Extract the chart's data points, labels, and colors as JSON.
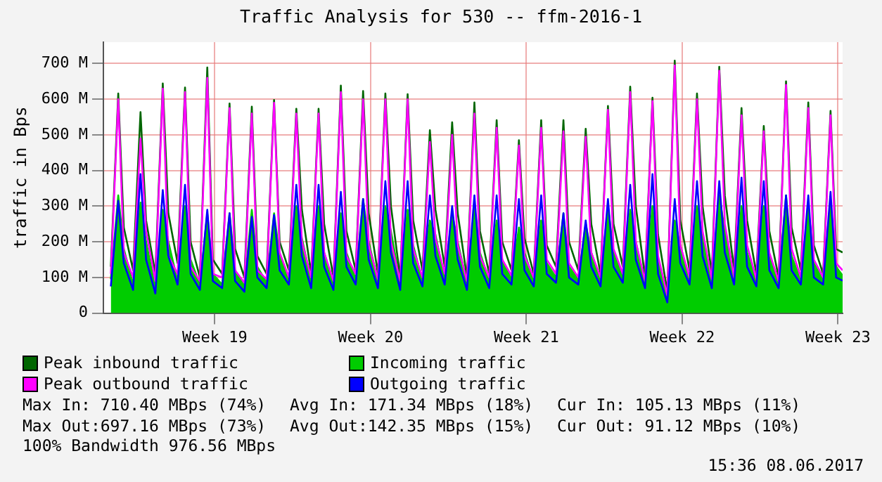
{
  "chart_data": {
    "type": "line",
    "title": "Traffic Analysis for 530 -- ffm-2016-1",
    "ylabel": "traffic in Bps",
    "x": [
      "2017-05-03T08:00",
      "2017-05-03T16:00",
      "2017-05-03T22:00",
      "2017-05-04T08:00",
      "2017-05-04T16:00",
      "2017-05-04T22:00",
      "2017-05-05T08:00",
      "2017-05-05T16:00",
      "2017-05-05T22:00",
      "2017-05-06T08:00",
      "2017-05-06T16:00",
      "2017-05-06T22:00",
      "2017-05-07T08:00",
      "2017-05-07T16:00",
      "2017-05-07T22:00",
      "2017-05-08T08:00",
      "2017-05-08T16:00",
      "2017-05-08T22:00",
      "2017-05-09T08:00",
      "2017-05-09T16:00",
      "2017-05-09T22:00",
      "2017-05-10T08:00",
      "2017-05-10T16:00",
      "2017-05-10T22:00",
      "2017-05-11T08:00",
      "2017-05-11T16:00",
      "2017-05-11T22:00",
      "2017-05-12T08:00",
      "2017-05-12T16:00",
      "2017-05-12T22:00",
      "2017-05-13T08:00",
      "2017-05-13T16:00",
      "2017-05-13T22:00",
      "2017-05-14T08:00",
      "2017-05-14T16:00",
      "2017-05-14T22:00",
      "2017-05-15T08:00",
      "2017-05-15T16:00",
      "2017-05-15T22:00",
      "2017-05-16T08:00",
      "2017-05-16T16:00",
      "2017-05-16T22:00",
      "2017-05-17T08:00",
      "2017-05-17T16:00",
      "2017-05-17T22:00",
      "2017-05-18T08:00",
      "2017-05-18T16:00",
      "2017-05-18T22:00",
      "2017-05-19T08:00",
      "2017-05-19T16:00",
      "2017-05-19T22:00",
      "2017-05-20T08:00",
      "2017-05-20T16:00",
      "2017-05-20T22:00",
      "2017-05-21T08:00",
      "2017-05-21T16:00",
      "2017-05-21T22:00",
      "2017-05-22T08:00",
      "2017-05-22T16:00",
      "2017-05-22T22:00",
      "2017-05-23T08:00",
      "2017-05-23T16:00",
      "2017-05-23T22:00",
      "2017-05-24T08:00",
      "2017-05-24T16:00",
      "2017-05-24T22:00",
      "2017-05-25T08:00",
      "2017-05-25T16:00",
      "2017-05-25T22:00",
      "2017-05-26T08:00",
      "2017-05-26T16:00",
      "2017-05-26T22:00",
      "2017-05-27T08:00",
      "2017-05-27T16:00",
      "2017-05-27T22:00",
      "2017-05-28T08:00",
      "2017-05-28T16:00",
      "2017-05-28T22:00",
      "2017-05-29T08:00",
      "2017-05-29T16:00",
      "2017-05-29T22:00",
      "2017-05-30T08:00",
      "2017-05-30T16:00",
      "2017-05-30T22:00",
      "2017-05-31T08:00",
      "2017-05-31T16:00",
      "2017-05-31T22:00",
      "2017-06-01T08:00",
      "2017-06-01T16:00",
      "2017-06-01T22:00",
      "2017-06-02T08:00",
      "2017-06-02T16:00",
      "2017-06-02T22:00",
      "2017-06-03T08:00",
      "2017-06-03T16:00",
      "2017-06-03T22:00",
      "2017-06-04T08:00",
      "2017-06-04T16:00",
      "2017-06-04T22:00",
      "2017-06-05T05:00"
    ],
    "series": [
      {
        "name": "Incoming traffic",
        "type": "area",
        "color": "#00cc00",
        "values": [
          95,
          330,
          180,
          80,
          310,
          200,
          70,
          290,
          200,
          90,
          300,
          150,
          80,
          280,
          110,
          80,
          280,
          120,
          75,
          290,
          130,
          85,
          280,
          160,
          90,
          300,
          210,
          90,
          300,
          170,
          80,
          280,
          170,
          95,
          320,
          200,
          90,
          300,
          230,
          85,
          290,
          190,
          90,
          260,
          220,
          95,
          280,
          200,
          85,
          300,
          170,
          90,
          260,
          150,
          95,
          240,
          170,
          90,
          260,
          140,
          100,
          280,
          130,
          95,
          250,
          170,
          90,
          300,
          170,
          100,
          290,
          200,
          80,
          300,
          150,
          40,
          260,
          190,
          90,
          300,
          220,
          85,
          330,
          230,
          90,
          300,
          170,
          90,
          300,
          160,
          85,
          330,
          160,
          90,
          300,
          140,
          90,
          310,
          130,
          105
        ]
      },
      {
        "name": "Peak inbound traffic",
        "type": "line",
        "color": "#006600",
        "values": [
          130,
          616,
          240,
          120,
          564,
          260,
          110,
          644,
          280,
          140,
          633,
          200,
          100,
          689,
          150,
          110,
          588,
          180,
          100,
          579,
          160,
          110,
          598,
          200,
          120,
          573,
          290,
          110,
          573,
          250,
          100,
          638,
          230,
          120,
          623,
          280,
          110,
          616,
          300,
          100,
          614,
          260,
          120,
          513,
          290,
          130,
          535,
          280,
          100,
          591,
          230,
          110,
          541,
          200,
          120,
          485,
          210,
          110,
          541,
          190,
          130,
          541,
          200,
          120,
          517,
          250,
          110,
          581,
          250,
          130,
          635,
          300,
          100,
          604,
          220,
          60,
          708,
          260,
          120,
          616,
          300,
          110,
          691,
          330,
          120,
          575,
          260,
          110,
          525,
          230,
          100,
          650,
          240,
          120,
          591,
          190,
          110,
          567,
          180,
          170
        ]
      },
      {
        "name": "Peak outbound traffic",
        "type": "line",
        "color": "#ff00ff",
        "values": [
          110,
          600,
          170,
          100,
          490,
          230,
          90,
          630,
          160,
          110,
          620,
          130,
          90,
          660,
          110,
          100,
          575,
          120,
          85,
          560,
          120,
          95,
          590,
          170,
          100,
          560,
          200,
          100,
          560,
          170,
          90,
          620,
          160,
          110,
          600,
          190,
          95,
          600,
          200,
          90,
          600,
          180,
          100,
          480,
          210,
          110,
          500,
          190,
          90,
          560,
          160,
          100,
          520,
          150,
          105,
          470,
          160,
          100,
          520,
          150,
          110,
          510,
          140,
          100,
          495,
          170,
          100,
          570,
          180,
          110,
          620,
          200,
          90,
          595,
          160,
          50,
          695,
          190,
          100,
          600,
          230,
          95,
          680,
          250,
          100,
          555,
          190,
          95,
          510,
          170,
          90,
          640,
          180,
          100,
          575,
          150,
          100,
          555,
          140,
          120
        ]
      },
      {
        "name": "Outgoing traffic",
        "type": "line",
        "color": "#0000ff",
        "values": [
          75,
          315,
          140,
          65,
          390,
          150,
          55,
          345,
          160,
          80,
          360,
          110,
          65,
          290,
          90,
          70,
          280,
          90,
          60,
          270,
          100,
          70,
          275,
          120,
          80,
          360,
          160,
          70,
          360,
          130,
          65,
          340,
          130,
          80,
          320,
          150,
          70,
          370,
          170,
          65,
          370,
          140,
          75,
          330,
          160,
          80,
          300,
          150,
          65,
          330,
          130,
          70,
          330,
          110,
          80,
          320,
          120,
          75,
          330,
          110,
          85,
          280,
          100,
          80,
          260,
          130,
          75,
          320,
          130,
          85,
          360,
          150,
          70,
          390,
          110,
          30,
          320,
          140,
          80,
          370,
          160,
          70,
          370,
          170,
          80,
          380,
          130,
          75,
          370,
          120,
          70,
          330,
          120,
          80,
          330,
          100,
          80,
          340,
          100,
          91
        ]
      }
    ],
    "xlim": [
      "2017-05-03",
      "2017-06-05T05:00"
    ],
    "xticks": [
      {
        "value": "2017-05-08",
        "label": "Week 19"
      },
      {
        "value": "2017-05-15",
        "label": "Week 20"
      },
      {
        "value": "2017-05-22",
        "label": "Week 21"
      },
      {
        "value": "2017-05-29",
        "label": "Week 22"
      },
      {
        "value": "2017-06-05",
        "label": "Week 23"
      }
    ],
    "ylim": [
      0,
      760
    ],
    "yticks": [
      0,
      {
        "value": 100,
        "label": "100 M"
      },
      {
        "value": 200,
        "label": "200 M"
      },
      {
        "value": 300,
        "label": "300 M"
      },
      {
        "value": 400,
        "label": "400 M"
      },
      {
        "value": 500,
        "label": "500 M"
      },
      {
        "value": 600,
        "label": "600 M"
      },
      {
        "value": 700,
        "label": "700 M"
      }
    ],
    "grid": true,
    "legend": "bottom",
    "marker": "none",
    "line_style": "solid",
    "annotations": [
      "Max In: 710.40 MBps (74%)",
      "Avg In: 171.34 MBps (18%)",
      "Cur In: 105.13 MBps (11%)",
      "Max Out:697.16 MBps (73%)",
      "Avg Out:142.35 MBps (15%)",
      "Cur Out: 91.12 MBps (10%)",
      "100% Bandwidth 976.56 MBps",
      "15:36 08.06.2017"
    ]
  }
}
